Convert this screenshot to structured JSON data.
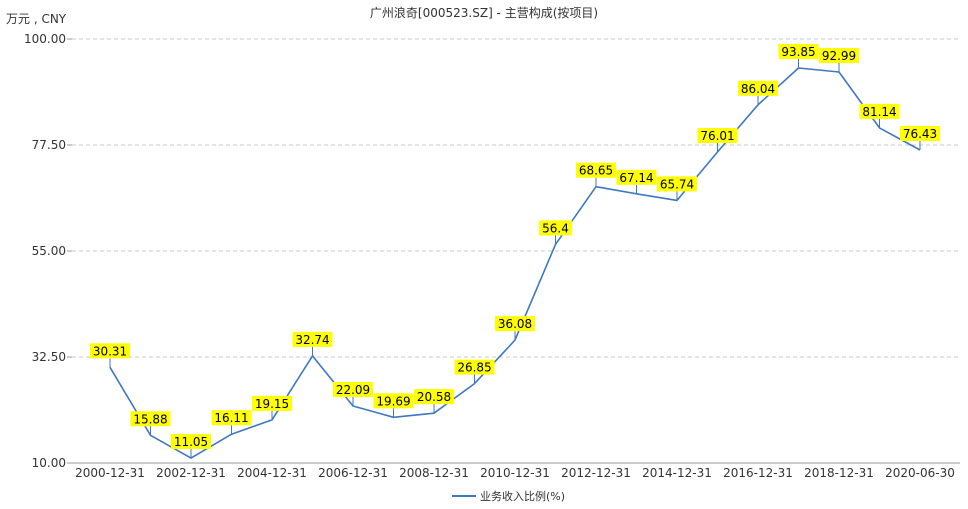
{
  "chart_data": {
    "type": "line",
    "title": "广州浪奇[000523.SZ] - 主营构成(按项目)",
    "unit_label": "万元 , CNY",
    "x_tick_labels": [
      "2000-12-31",
      "2002-12-31",
      "2004-12-31",
      "2006-12-31",
      "2008-12-31",
      "2010-12-31",
      "2012-12-31",
      "2014-12-31",
      "2016-12-31",
      "2018-12-31",
      "2020-06-30"
    ],
    "y_tick_labels": [
      "10.00",
      "32.50",
      "55.00",
      "77.50",
      "100.00"
    ],
    "y_ticks": [
      10,
      32.5,
      55,
      77.5,
      100
    ],
    "ylim": [
      10,
      100
    ],
    "grid": true,
    "legend_position": "bottom-center",
    "series": [
      {
        "name": "业务收入比例(%)",
        "color": "#3f78c0",
        "values": [
          30.31,
          15.88,
          11.05,
          16.11,
          19.15,
          32.74,
          22.09,
          19.69,
          20.58,
          26.85,
          36.08,
          56.4,
          68.65,
          67.14,
          65.74,
          76.01,
          86.04,
          93.85,
          92.99,
          81.14,
          76.43
        ],
        "labels": [
          "30.31",
          "15.88",
          "11.05",
          "16.11",
          "19.15",
          "32.74",
          "22.09",
          "19.69",
          "20.58",
          "26.85",
          "36.08",
          "56.4",
          "68.65",
          "67.14",
          "65.74",
          "76.01",
          "86.04",
          "93.85",
          "92.99",
          "81.14",
          "76.43"
        ]
      }
    ],
    "label_bg_color": "#ffff00"
  }
}
